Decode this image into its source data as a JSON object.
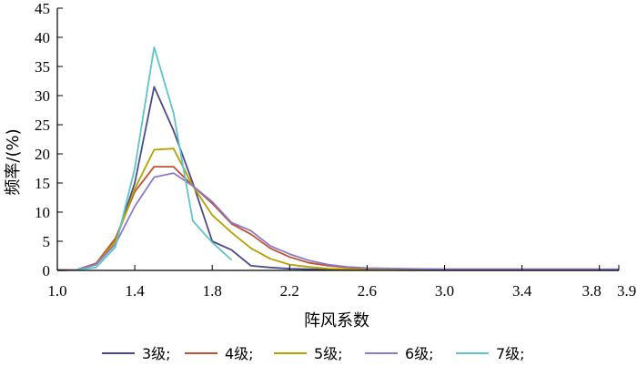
{
  "chart_data": {
    "type": "line",
    "xlabel": "阵风系数",
    "ylabel": "频率/(%)",
    "xlim": [
      1.0,
      3.9
    ],
    "ylim": [
      0,
      45
    ],
    "x_ticks": [
      {
        "value": 1.0,
        "label": "1.0"
      },
      {
        "value": 1.4,
        "label": "1.4"
      },
      {
        "value": 1.8,
        "label": "1.8"
      },
      {
        "value": 2.2,
        "label": "2.2"
      },
      {
        "value": 2.6,
        "label": "2.6"
      },
      {
        "value": 3.0,
        "label": "3.0"
      },
      {
        "value": 3.4,
        "label": "3.4"
      },
      {
        "value": 3.8,
        "label": "3.8"
      },
      {
        "value": 3.9,
        "label": "3.9"
      }
    ],
    "y_ticks": [
      0,
      5,
      10,
      15,
      20,
      25,
      30,
      35,
      40,
      45
    ],
    "grid": false,
    "legend_position": "bottom",
    "series": [
      {
        "name": "3级;",
        "color": "#4a4a8a",
        "x": [
          1.0,
          1.1,
          1.2,
          1.3,
          1.4,
          1.5,
          1.6,
          1.7,
          1.8,
          1.9,
          2.0,
          2.1,
          2.2,
          2.3,
          2.4,
          2.5,
          2.6,
          2.8,
          3.0,
          3.4,
          3.9
        ],
        "y": [
          0.1,
          0.1,
          1.2,
          5.0,
          15.0,
          31.5,
          24.0,
          15.0,
          5.0,
          3.5,
          0.8,
          0.5,
          0.3,
          0.2,
          0.1,
          0.1,
          0.1,
          0.05,
          0.05,
          0.05,
          0.05
        ]
      },
      {
        "name": "4级;",
        "color": "#c0502e",
        "x": [
          1.0,
          1.1,
          1.2,
          1.3,
          1.4,
          1.5,
          1.6,
          1.7,
          1.8,
          1.9,
          2.0,
          2.1,
          2.2,
          2.3,
          2.4,
          2.5,
          2.6,
          2.8,
          3.0,
          3.4,
          3.8
        ],
        "y": [
          0.0,
          0.1,
          1.2,
          5.5,
          13.5,
          17.8,
          17.8,
          14.5,
          11.5,
          8.0,
          6.2,
          3.8,
          2.3,
          1.3,
          0.8,
          0.5,
          0.3,
          0.2,
          0.2,
          0.2,
          0.2
        ]
      },
      {
        "name": "5级;",
        "color": "#b5a000",
        "x": [
          1.0,
          1.1,
          1.2,
          1.3,
          1.4,
          1.5,
          1.6,
          1.7,
          1.8,
          1.9,
          2.0,
          2.1,
          2.2,
          2.3,
          2.4,
          2.5,
          2.6,
          2.8,
          3.0,
          3.4,
          3.8
        ],
        "y": [
          0.0,
          0.1,
          1.0,
          5.0,
          14.0,
          20.7,
          20.9,
          14.5,
          9.5,
          6.5,
          3.8,
          2.0,
          1.0,
          0.6,
          0.3,
          0.2,
          0.1,
          0.1,
          0.1,
          0.1,
          0.1
        ]
      },
      {
        "name": "6级;",
        "color": "#8a7cc8",
        "x": [
          1.0,
          1.1,
          1.2,
          1.3,
          1.4,
          1.5,
          1.6,
          1.7,
          1.8,
          1.9,
          2.0,
          2.1,
          2.2,
          2.3,
          2.4,
          2.5,
          2.6,
          2.8,
          3.0,
          3.4,
          3.9
        ],
        "y": [
          0.0,
          0.1,
          1.0,
          4.5,
          11.0,
          16.0,
          16.7,
          14.5,
          11.8,
          8.2,
          6.8,
          4.2,
          2.8,
          1.7,
          1.0,
          0.6,
          0.4,
          0.3,
          0.2,
          0.2,
          0.2
        ]
      },
      {
        "name": "7级;",
        "color": "#5fc4c8",
        "x": [
          1.1,
          1.2,
          1.3,
          1.4,
          1.5,
          1.6,
          1.7,
          1.8,
          1.9
        ],
        "y": [
          0.1,
          0.5,
          4.0,
          17.5,
          38.3,
          27.0,
          8.5,
          4.8,
          1.8
        ]
      }
    ]
  }
}
